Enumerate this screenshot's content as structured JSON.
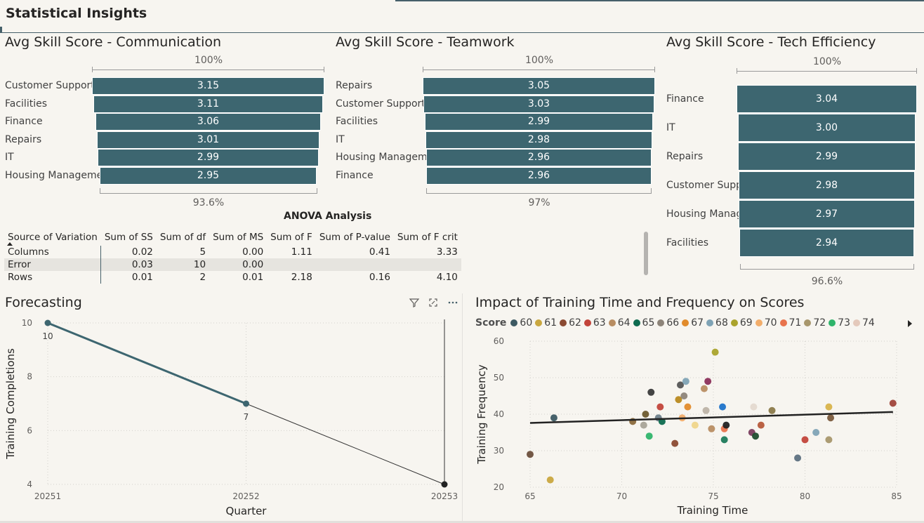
{
  "page": {
    "title": "Statistical Insights"
  },
  "colors": {
    "bar": "#3d6670",
    "background": "#f7f5f0",
    "line": "#3d6670",
    "trend": "#222222"
  },
  "communication": {
    "title": "Avg Skill Score - Communication",
    "ref_top": "100%",
    "ref_bottom": "93.6%",
    "categories": [
      "Customer Support",
      "Facilities",
      "Finance",
      "Repairs",
      "IT",
      "Housing Management"
    ],
    "labels": [
      "3.15",
      "3.11",
      "3.06",
      "3.01",
      "2.99",
      "2.95"
    ]
  },
  "teamwork": {
    "title": "Avg Skill Score - Teamwork",
    "ref_top": "100%",
    "ref_bottom": "97%",
    "categories": [
      "Repairs",
      "Customer Support",
      "Facilities",
      "IT",
      "Housing Management",
      "Finance"
    ],
    "labels": [
      "3.05",
      "3.03",
      "2.99",
      "2.98",
      "2.96",
      "2.96"
    ]
  },
  "tech": {
    "title": "Avg Skill Score - Tech Efficiency",
    "ref_top": "100%",
    "ref_bottom": "96.6%",
    "categories": [
      "Finance",
      "IT",
      "Repairs",
      "Customer Support",
      "Housing Management",
      "Facilities"
    ],
    "labels": [
      "3.04",
      "3.00",
      "2.99",
      "2.98",
      "2.97",
      "2.94"
    ]
  },
  "anova": {
    "title": "ANOVA Analysis",
    "headers": [
      "Source of Variation",
      "Sum of SS",
      "Sum of df",
      "Sum of MS",
      "Sum of F",
      "Sum of P-value",
      "Sum of F crit"
    ],
    "rows": [
      [
        "Columns",
        "0.02",
        "5",
        "0.00",
        "1.11",
        "0.41",
        "3.33"
      ],
      [
        "Error",
        "0.03",
        "10",
        "0.00",
        "",
        "",
        ""
      ],
      [
        "Rows",
        "0.01",
        "2",
        "0.01",
        "2.18",
        "0.16",
        "4.10"
      ]
    ]
  },
  "forecast": {
    "title": "Forecasting",
    "icons": [
      "filter-icon",
      "focus-mode-icon",
      "more-options-icon"
    ]
  },
  "scatter_panel": {
    "title": "Impact of Training Time and Frequency on Scores",
    "legend_title": "Score"
  },
  "chart_data": [
    {
      "type": "bar",
      "title": "Avg Skill Score - Communication",
      "categories": [
        "Customer Support",
        "Facilities",
        "Finance",
        "Repairs",
        "IT",
        "Housing Management"
      ],
      "values": [
        3.15,
        3.11,
        3.06,
        3.01,
        2.99,
        2.95
      ],
      "orientation": "horizontal-funnel"
    },
    {
      "type": "bar",
      "title": "Avg Skill Score - Teamwork",
      "categories": [
        "Repairs",
        "Customer Support",
        "Facilities",
        "IT",
        "Housing Management",
        "Finance"
      ],
      "values": [
        3.05,
        3.03,
        2.99,
        2.98,
        2.96,
        2.96
      ],
      "orientation": "horizontal-funnel"
    },
    {
      "type": "bar",
      "title": "Avg Skill Score - Tech Efficiency",
      "categories": [
        "Finance",
        "IT",
        "Repairs",
        "Customer Support",
        "Housing Management",
        "Facilities"
      ],
      "values": [
        3.04,
        3.0,
        2.99,
        2.98,
        2.97,
        2.94
      ],
      "orientation": "horizontal-funnel"
    },
    {
      "type": "line",
      "title": "Forecasting",
      "xlabel": "Quarter",
      "ylabel": "Training Completions",
      "x": [
        "20251",
        "20252",
        "20253"
      ],
      "series": [
        {
          "values": [
            10,
            7,
            null
          ],
          "data_labels": [
            "10",
            "7",
            ""
          ]
        },
        {
          "values": [
            null,
            7,
            4
          ],
          "style": "forecast"
        }
      ],
      "ylim": [
        4,
        10
      ],
      "yticks": [
        4,
        6,
        8,
        10
      ],
      "grid": true
    },
    {
      "type": "scatter",
      "title": "Impact of Training Time and Frequency on Scores",
      "xlabel": "Training Time",
      "ylabel": "Training Frequency",
      "xlim": [
        65,
        85
      ],
      "ylim": [
        20,
        60
      ],
      "xticks": [
        65,
        70,
        75,
        80,
        85
      ],
      "yticks": [
        20,
        30,
        40,
        50,
        60
      ],
      "legend_title": "Score",
      "legend": [
        {
          "name": "60",
          "color": "#3d5a63"
        },
        {
          "name": "61",
          "color": "#c9a73f"
        },
        {
          "name": "62",
          "color": "#8b4a32"
        },
        {
          "name": "63",
          "color": "#c2443a"
        },
        {
          "name": "64",
          "color": "#b88d62"
        },
        {
          "name": "65",
          "color": "#0e6b4f"
        },
        {
          "name": "66",
          "color": "#8d8479"
        },
        {
          "name": "67",
          "color": "#e18b2b"
        },
        {
          "name": "68",
          "color": "#7fa3b5"
        },
        {
          "name": "69",
          "color": "#aaa32c"
        },
        {
          "name": "70",
          "color": "#f2ad6a"
        },
        {
          "name": "71",
          "color": "#e8734c"
        },
        {
          "name": "72",
          "color": "#a8976c"
        },
        {
          "name": "73",
          "color": "#2fb46a"
        },
        {
          "name": "74",
          "color": "#e4c9bb"
        }
      ],
      "points": [
        {
          "x": 65.0,
          "y": 29,
          "c": "#6b4f3c"
        },
        {
          "x": 66.1,
          "y": 22,
          "c": "#c9a73f"
        },
        {
          "x": 66.3,
          "y": 39,
          "c": "#3d5a63"
        },
        {
          "x": 70.6,
          "y": 38,
          "c": "#8b6a3c"
        },
        {
          "x": 71.2,
          "y": 37,
          "c": "#a8a397"
        },
        {
          "x": 71.3,
          "y": 40,
          "c": "#6d5a2d"
        },
        {
          "x": 71.5,
          "y": 34,
          "c": "#2fb46a"
        },
        {
          "x": 71.6,
          "y": 46,
          "c": "#3a3a3a"
        },
        {
          "x": 72.0,
          "y": 39,
          "c": "#6e7f8a"
        },
        {
          "x": 72.1,
          "y": 42,
          "c": "#c2443a"
        },
        {
          "x": 72.2,
          "y": 38,
          "c": "#0e6b4f"
        },
        {
          "x": 72.9,
          "y": 32,
          "c": "#8b4a32"
        },
        {
          "x": 73.1,
          "y": 44,
          "c": "#b8891f"
        },
        {
          "x": 73.2,
          "y": 48,
          "c": "#555555"
        },
        {
          "x": 73.3,
          "y": 39,
          "c": "#f2ad6a"
        },
        {
          "x": 73.4,
          "y": 45,
          "c": "#8d8479"
        },
        {
          "x": 73.5,
          "y": 49,
          "c": "#7fa3b5"
        },
        {
          "x": 73.6,
          "y": 42,
          "c": "#e18b2b"
        },
        {
          "x": 74.0,
          "y": 37,
          "c": "#efd58a"
        },
        {
          "x": 74.5,
          "y": 47,
          "c": "#b88d62"
        },
        {
          "x": 74.6,
          "y": 41,
          "c": "#bdb3a6"
        },
        {
          "x": 74.7,
          "y": 49,
          "c": "#8b2f5a"
        },
        {
          "x": 74.9,
          "y": 36,
          "c": "#b88d62"
        },
        {
          "x": 75.1,
          "y": 57,
          "c": "#aaa32c"
        },
        {
          "x": 75.5,
          "y": 42,
          "c": "#1f73c9"
        },
        {
          "x": 75.6,
          "y": 36,
          "c": "#e8734c"
        },
        {
          "x": 75.6,
          "y": 33,
          "c": "#1d7a5a"
        },
        {
          "x": 75.7,
          "y": 37,
          "c": "#222222"
        },
        {
          "x": 77.1,
          "y": 35,
          "c": "#7a3d5e"
        },
        {
          "x": 77.2,
          "y": 42,
          "c": "#e4d9cf"
        },
        {
          "x": 77.3,
          "y": 34,
          "c": "#1f4f2f"
        },
        {
          "x": 77.6,
          "y": 37,
          "c": "#b65a3a"
        },
        {
          "x": 78.2,
          "y": 41,
          "c": "#8b7a4a"
        },
        {
          "x": 79.6,
          "y": 28,
          "c": "#5d7080"
        },
        {
          "x": 80.0,
          "y": 33,
          "c": "#c2443a"
        },
        {
          "x": 80.6,
          "y": 35,
          "c": "#7fa3b5"
        },
        {
          "x": 81.3,
          "y": 42,
          "c": "#d8b34a"
        },
        {
          "x": 81.3,
          "y": 33,
          "c": "#a8976c"
        },
        {
          "x": 81.4,
          "y": 39,
          "c": "#7a5a3c"
        },
        {
          "x": 84.8,
          "y": 43,
          "c": "#a0443a"
        }
      ],
      "trendline": {
        "x": [
          65,
          84.8
        ],
        "y": [
          37.6,
          40.6
        ]
      },
      "grid": true
    }
  ]
}
